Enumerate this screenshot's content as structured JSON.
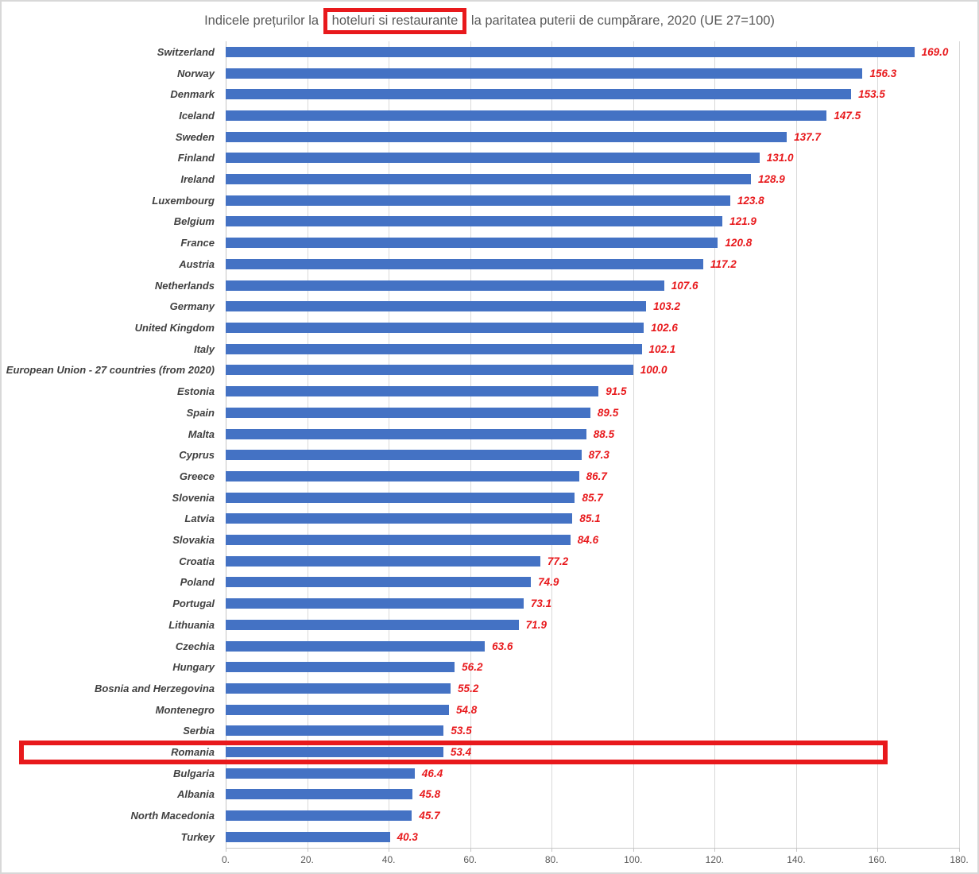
{
  "title": {
    "prefix": "Indicele prețurilor la ",
    "highlighted": "hoteluri si restaurante",
    "suffix": " la paritatea puterii de cumpărare, 2020 (UE 27=100)"
  },
  "chart_data": {
    "type": "bar",
    "orientation": "horizontal",
    "title": "Indicele prețurilor la hoteluri si restaurante la paritatea puterii de cumpărare, 2020 (UE 27=100)",
    "categories": [
      "Switzerland",
      "Norway",
      "Denmark",
      "Iceland",
      "Sweden",
      "Finland",
      "Ireland",
      "Luxembourg",
      "Belgium",
      "France",
      "Austria",
      "Netherlands",
      "Germany",
      "United Kingdom",
      "Italy",
      "European Union - 27 countries (from 2020)",
      "Estonia",
      "Spain",
      "Malta",
      "Cyprus",
      "Greece",
      "Slovenia",
      "Latvia",
      "Slovakia",
      "Croatia",
      "Poland",
      "Portugal",
      "Lithuania",
      "Czechia",
      "Hungary",
      "Bosnia and Herzegovina",
      "Montenegro",
      "Serbia",
      "Romania",
      "Bulgaria",
      "Albania",
      "North Macedonia",
      "Turkey"
    ],
    "values": [
      169.0,
      156.3,
      153.5,
      147.5,
      137.7,
      131.0,
      128.9,
      123.8,
      121.9,
      120.8,
      117.2,
      107.6,
      103.2,
      102.6,
      102.1,
      100.0,
      91.5,
      89.5,
      88.5,
      87.3,
      86.7,
      85.7,
      85.1,
      84.6,
      77.2,
      74.9,
      73.1,
      71.9,
      63.6,
      56.2,
      55.2,
      54.8,
      53.5,
      53.4,
      46.4,
      45.8,
      45.7,
      40.3
    ],
    "value_labels": [
      "169.0",
      "156.3",
      "153.5",
      "147.5",
      "137.7",
      "131.0",
      "128.9",
      "123.8",
      "121.9",
      "120.8",
      "117.2",
      "107.6",
      "103.2",
      "102.6",
      "102.1",
      "100.0",
      "91.5",
      "89.5",
      "88.5",
      "87.3",
      "86.7",
      "85.7",
      "85.1",
      "84.6",
      "77.2",
      "74.9",
      "73.1",
      "71.9",
      "63.6",
      "56.2",
      "55.2",
      "54.8",
      "53.5",
      "53.4",
      "46.4",
      "45.8",
      "45.7",
      "40.3"
    ],
    "xlim": [
      0,
      180
    ],
    "tick_step": 20,
    "x_ticks": [
      "0.",
      "20.",
      "40.",
      "60.",
      "80.",
      "100.",
      "120.",
      "140.",
      "160.",
      "180."
    ],
    "grid": true,
    "legend": "none",
    "highlighted_category": "Romania"
  },
  "colors": {
    "bar": "#4472c4",
    "value_label": "#e8191c",
    "category_label": "#404040",
    "axis_label": "#595959",
    "title_text": "#595959",
    "gridline": "#d9d9d9",
    "annotation_red": "#e8191c"
  }
}
